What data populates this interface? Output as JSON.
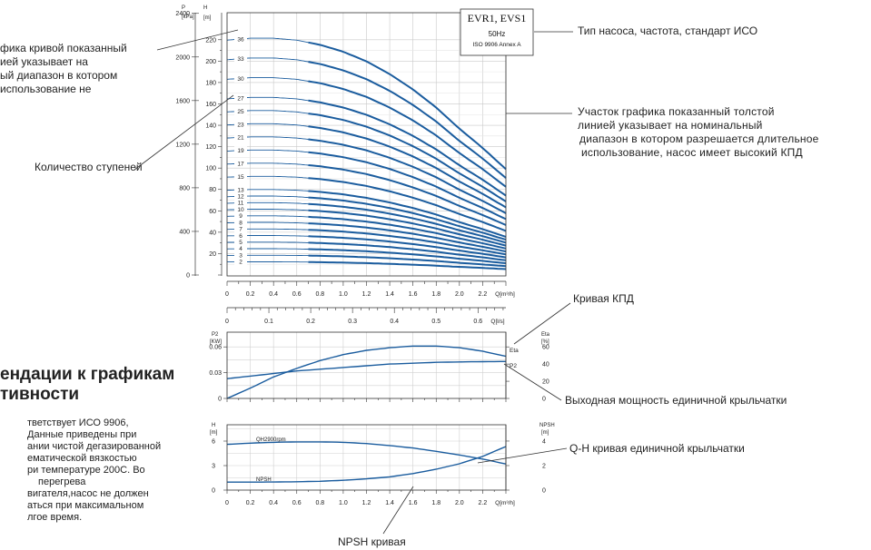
{
  "annotations": {
    "left_curve": [
      "фика кривой показанный",
      "ией указывает на",
      "ый диапазон в котором",
      "использование не"
    ],
    "stages": "Количество ступеней",
    "pump_type": "Тип насоса, частота, стандарт ИСО",
    "thick_line": [
      "Участок графика показанный толстой",
      "линией указывает на номинальный",
      "диапазон в котором разрешается длительное",
      "использование, насос имеет высокий КПД"
    ],
    "eff_curve": "Кривая КПД",
    "power": "Выходная мощность единичной крыльчатки",
    "qh": "Q-H кривая единичной крыльчатки",
    "npsh": "NPSH кривая"
  },
  "recommendations": {
    "title": [
      "ендации к графикам",
      "тивности"
    ],
    "text": [
      "тветствует ИСО 9906,",
      "Данные приведены при",
      "ании чистой дегазированной",
      "ематической вязкостью",
      "ри температуре 200С. Во",
      "перегрева",
      "вигателя,насос не должен",
      "аться при максимальном",
      "лгое время."
    ]
  },
  "legend": {
    "title": "EVR1, EVS1",
    "freq": "50Hz",
    "standard": "ISO 9906 Annex A"
  },
  "chart_data": [
    {
      "type": "line",
      "title": "",
      "xlabel": "Q[m³/h]",
      "ylabel": "H [m]",
      "y2label": "P [kPa]",
      "xlim": [
        0,
        2.4
      ],
      "ylim": [
        0,
        230
      ],
      "x_ticks": [
        "0",
        "0.2",
        "0.4",
        "0.6",
        "0.8",
        "1.0",
        "1.2",
        "1.4",
        "1.6",
        "1.8",
        "2.0",
        "2.2"
      ],
      "y_ticks": [
        "20",
        "40",
        "60",
        "80",
        "100",
        "120",
        "140",
        "160",
        "180",
        "200",
        "220"
      ],
      "p_ticks": [
        "0",
        "400",
        "800",
        "1200",
        "1600",
        "2000",
        "2400"
      ],
      "secondary_xlabel": "Q[l/s]",
      "secondary_x_ticks": [
        "0",
        "0.1",
        "0.2",
        "0.3",
        "0.4",
        "0.5",
        "0.6"
      ],
      "stage_labels": [
        "2",
        "3",
        "4",
        "5",
        "6",
        "7",
        "8",
        "9",
        "10",
        "11",
        "12",
        "13",
        "15",
        "17",
        "19",
        "21",
        "23",
        "25",
        "27",
        "30",
        "33",
        "36"
      ],
      "stages": [
        2,
        3,
        4,
        5,
        6,
        7,
        8,
        9,
        10,
        11,
        12,
        13,
        15,
        17,
        19,
        21,
        23,
        25,
        27,
        30,
        33,
        36
      ],
      "head_per_stage": {
        "x": [
          0,
          0.2,
          0.4,
          0.6,
          0.8,
          1.0,
          1.2,
          1.4,
          1.6,
          1.8,
          2.0,
          2.2,
          2.4
        ],
        "y": [
          6.1,
          6.15,
          6.15,
          6.1,
          5.98,
          5.8,
          5.55,
          5.22,
          4.82,
          4.35,
          3.8,
          3.3,
          2.75
        ]
      },
      "preferred_range": [
        0.7,
        2.4
      ]
    },
    {
      "type": "line",
      "xlabel": "Q[m³/h]",
      "ylabel": "P2 [KW]",
      "y2label": "Eta [%]",
      "xlim": [
        0,
        2.4
      ],
      "x_ticks": [
        "0",
        "0.2",
        "0.4",
        "0.6",
        "0.8",
        "1.0",
        "1.2",
        "1.4",
        "1.6",
        "1.8",
        "2.0",
        "2.2"
      ],
      "y_ticks": [
        "0",
        "0.03",
        "0.06"
      ],
      "ylim": [
        0,
        0.075
      ],
      "y2_ticks": [
        "0",
        "20",
        "40",
        "60"
      ],
      "y2lim": [
        0,
        75
      ],
      "series": [
        {
          "name": "Eta",
          "x": [
            0,
            0.2,
            0.4,
            0.6,
            0.8,
            1.0,
            1.2,
            1.4,
            1.6,
            1.8,
            2.0,
            2.2,
            2.4
          ],
          "y": [
            0,
            12,
            25,
            35,
            44,
            51,
            56,
            59,
            61,
            61,
            59,
            55,
            49
          ]
        },
        {
          "name": "P2",
          "x": [
            0,
            0.2,
            0.4,
            0.6,
            0.8,
            1.0,
            1.2,
            1.4,
            1.6,
            1.8,
            2.0,
            2.2,
            2.4
          ],
          "y": [
            0.023,
            0.026,
            0.029,
            0.032,
            0.034,
            0.036,
            0.038,
            0.04,
            0.041,
            0.042,
            0.0425,
            0.0428,
            0.043
          ]
        }
      ]
    },
    {
      "type": "line",
      "xlabel": "Q[m³/h]",
      "ylabel": "H [m]",
      "y2label": "NPSH [m]",
      "xlim": [
        0,
        2.4
      ],
      "x_ticks": [
        "0",
        "0.2",
        "0.4",
        "0.6",
        "0.8",
        "1.0",
        "1.2",
        "1.4",
        "1.6",
        "1.8",
        "2.0",
        "2.2"
      ],
      "y_ticks": [
        "0",
        "3",
        "6"
      ],
      "ylim": [
        0,
        8
      ],
      "y2_ticks": [
        "0",
        "2",
        "4"
      ],
      "y2lim": [
        0,
        5.33
      ],
      "series": [
        {
          "name": "QH2900rpm",
          "x": [
            0,
            0.2,
            0.4,
            0.6,
            0.8,
            1.0,
            1.2,
            1.4,
            1.6,
            1.8,
            2.0,
            2.2,
            2.4
          ],
          "y": [
            5.6,
            5.75,
            5.85,
            5.9,
            5.9,
            5.85,
            5.7,
            5.45,
            5.15,
            4.75,
            4.3,
            3.8,
            3.2
          ]
        },
        {
          "name": "NPSH",
          "x": [
            0,
            0.2,
            0.4,
            0.6,
            0.8,
            1.0,
            1.2,
            1.4,
            1.6,
            1.8,
            2.0,
            2.2,
            2.4
          ],
          "y": [
            0.65,
            0.65,
            0.66,
            0.68,
            0.72,
            0.8,
            0.92,
            1.08,
            1.35,
            1.7,
            2.15,
            2.75,
            3.55
          ]
        }
      ]
    }
  ]
}
